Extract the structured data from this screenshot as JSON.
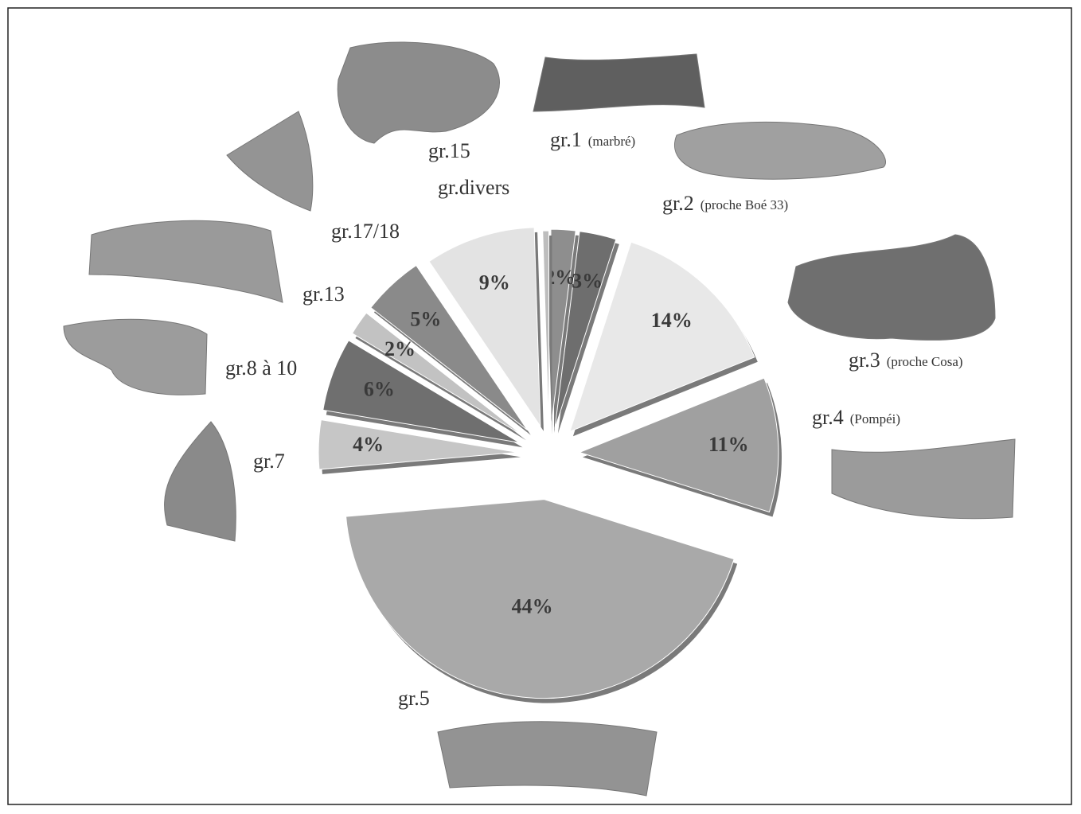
{
  "chart_data": {
    "type": "pie",
    "categories": [
      "gr.1",
      "gr.2",
      "gr.3",
      "gr.4",
      "gr.5",
      "gr.7",
      "gr.8 à 10",
      "gr.13",
      "gr.17/18",
      "gr.divers",
      "gr.15"
    ],
    "label_notes": [
      "(marbré)",
      "(proche Boé 33)",
      "(proche Cosa)",
      "(Pompéi)",
      null,
      null,
      null,
      null,
      null,
      null,
      null
    ],
    "values": [
      2,
      3,
      14,
      11,
      44,
      4,
      6,
      2,
      5,
      9,
      0.5
    ],
    "value_labels": [
      "2%",
      "3%",
      "14%",
      "11%",
      "44%",
      "4%",
      "6%",
      "2%",
      "5%",
      "9%",
      null
    ],
    "colors": [
      "#8e8e8e",
      "#6e6e6e",
      "#e8e8e8",
      "#a0a0a0",
      "#a9a9a9",
      "#c6c6c6",
      "#6f6f6f",
      "#c2c2c2",
      "#8a8a8a",
      "#e3e3e3",
      "#bdbdbd"
    ]
  }
}
